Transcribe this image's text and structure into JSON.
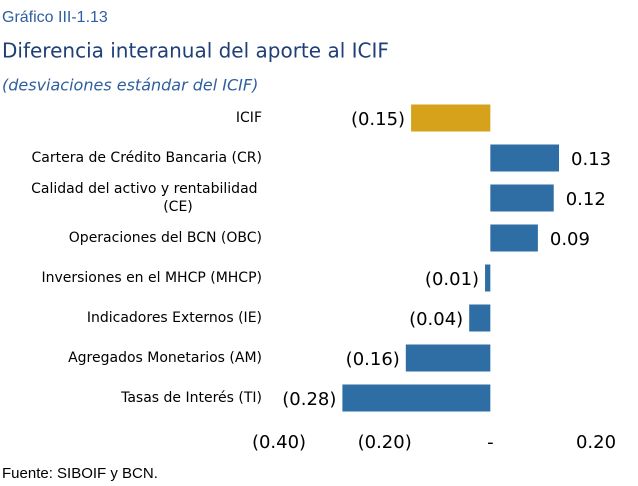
{
  "chart_data": {
    "type": "bar",
    "orientation": "horizontal",
    "label": "Gráfico III-1.13",
    "title": "Diferencia interanual del aporte al ICIF",
    "subtitle": "(desviaciones estándar del ICIF)",
    "source": "Fuente: SIBOIF y BCN.",
    "categories": [
      "ICIF",
      "Cartera de Crédito Bancaria (CR)",
      "Calidad del activo y rentabilidad (CE)",
      "Operaciones del BCN (OBC)",
      "Inversiones en el MHCP (MHCP)",
      "Indicadores Externos (IE)",
      "Agregados Monetarios (AM)",
      "Tasas de Interés (TI)"
    ],
    "values": [
      -0.15,
      0.13,
      0.12,
      0.09,
      -0.01,
      -0.04,
      -0.16,
      -0.28
    ],
    "value_labels": [
      "(0.15)",
      "0.13",
      "0.12",
      "0.09",
      "(0.01)",
      "(0.04)",
      "(0.16)",
      "(0.28)"
    ],
    "colors": [
      "#d6a21c",
      "#2f6ea5",
      "#2f6ea5",
      "#2f6ea5",
      "#2f6ea5",
      "#2f6ea5",
      "#2f6ea5",
      "#2f6ea5"
    ],
    "xlim": [
      -0.4,
      0.2
    ],
    "xticks": [
      {
        "value": -0.4,
        "label": "(0.40)"
      },
      {
        "value": -0.2,
        "label": "(0.20)"
      },
      {
        "value": 0,
        "label": "-"
      },
      {
        "value": 0.2,
        "label": "0.20"
      }
    ]
  }
}
